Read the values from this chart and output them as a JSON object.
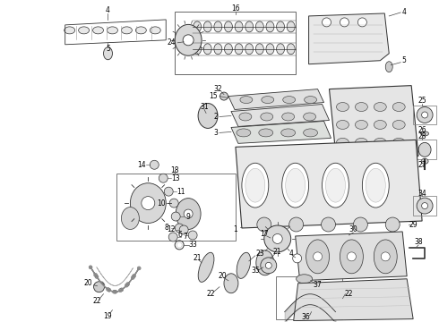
{
  "bg_color": "#ffffff",
  "lc": "#444444",
  "po": "#333333",
  "pc": "#dddddd",
  "fs": 5.5,
  "figsize": [
    4.9,
    3.6
  ],
  "dpi": 100
}
